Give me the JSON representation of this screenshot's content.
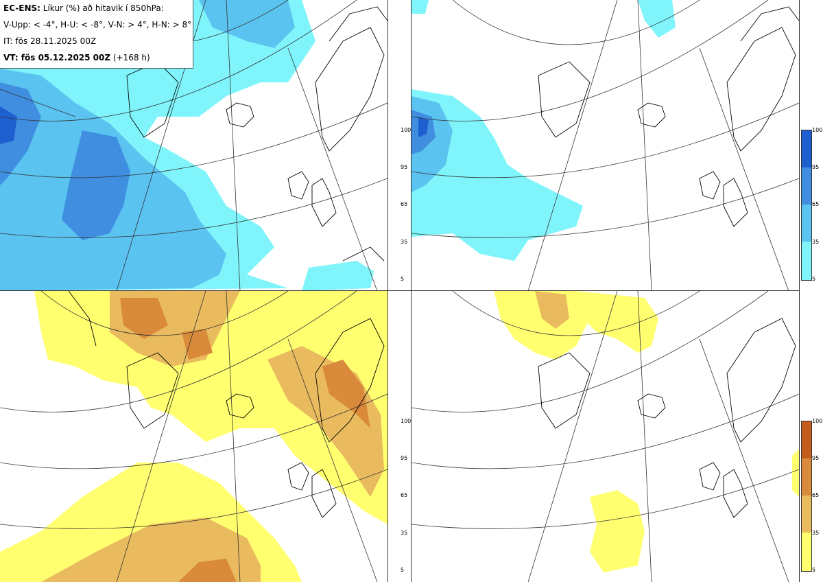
{
  "header": {
    "title_bold": "EC-ENS:",
    "title_rest": "Líkur (%) að hitavik í 850hPa:",
    "legend_line": "V-Upp: < -4°, H-U: < -8°, V-N: > 4°, H-N: > 8°",
    "init_time": "IT: fös 28.11.2025 00Z",
    "valid_bold": "VT: fös 05.12.2025 00Z",
    "valid_rest": "(+168 h)"
  },
  "colorbar": {
    "ticks": [
      "100",
      "95",
      "65",
      "35",
      "5"
    ],
    "cold_colors": [
      "#1e5fd0",
      "#3f8ee0",
      "#5bc3f0",
      "#7ff5fb"
    ],
    "warm_colors": [
      "#c45d1c",
      "#d98a3a",
      "#e9bb5e",
      "#ffff70"
    ]
  },
  "panels": [
    {
      "id": "V-Upp",
      "palette": "cold"
    },
    {
      "id": "H-U",
      "palette": "cold"
    },
    {
      "id": "V-N",
      "palette": "warm"
    },
    {
      "id": "H-N",
      "palette": "warm"
    }
  ]
}
